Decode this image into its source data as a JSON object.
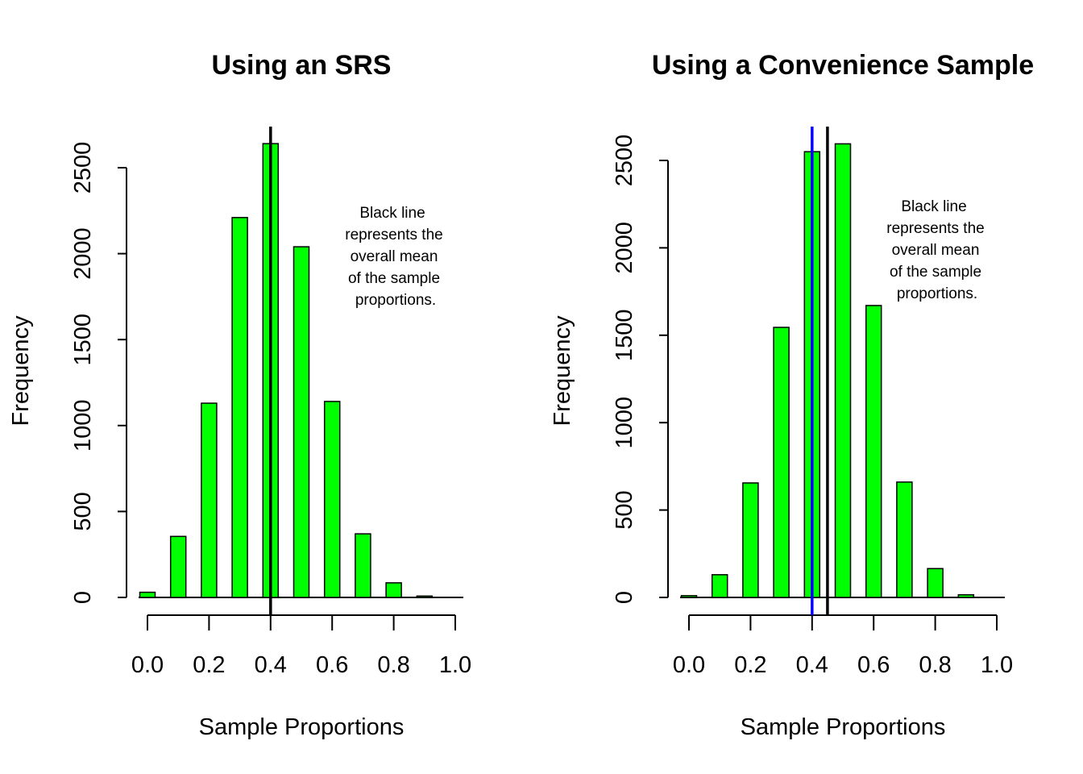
{
  "colors": {
    "bar_fill": "#00ff00",
    "bar_stroke": "#000000",
    "mean_line": "#000000",
    "true_line": "#0000ff",
    "background": "#ffffff"
  },
  "chart_data": [
    {
      "type": "bar",
      "title": "Using an SRS",
      "xlabel": "Sample Proportions",
      "ylabel": "Frequency",
      "x": [
        0.0,
        0.1,
        0.2,
        0.3,
        0.4,
        0.5,
        0.6,
        0.7,
        0.8,
        0.9
      ],
      "values": [
        30,
        355,
        1130,
        2210,
        2640,
        2040,
        1140,
        370,
        85,
        8
      ],
      "xlim": [
        0.0,
        1.0
      ],
      "ylim": [
        0,
        2500
      ],
      "xticks": [
        "0.0",
        "0.2",
        "0.4",
        "0.6",
        "0.8",
        "1.0"
      ],
      "yticks": [
        "0",
        "500",
        "1000",
        "1500",
        "2000",
        "2500"
      ],
      "vlines": [
        {
          "x": 0.4,
          "color": "#000000"
        }
      ],
      "annotation": [
        "Black line",
        "represents the",
        "overall mean",
        "of the sample",
        "proportions."
      ],
      "grid": false
    },
    {
      "type": "bar",
      "title": "Using a Convenience Sample",
      "xlabel": "Sample Proportions",
      "ylabel": "Frequency",
      "x": [
        0.0,
        0.1,
        0.2,
        0.3,
        0.4,
        0.5,
        0.6,
        0.7,
        0.8,
        0.9
      ],
      "values": [
        10,
        130,
        655,
        1545,
        2550,
        2595,
        1670,
        660,
        165,
        15
      ],
      "xlim": [
        0.0,
        1.0
      ],
      "ylim": [
        0,
        2500
      ],
      "xticks": [
        "0.0",
        "0.2",
        "0.4",
        "0.6",
        "0.8",
        "1.0"
      ],
      "yticks": [
        "0",
        "500",
        "1000",
        "1500",
        "2000",
        "2500"
      ],
      "vlines": [
        {
          "x": 0.4,
          "color": "#0000ff"
        },
        {
          "x": 0.45,
          "color": "#000000"
        }
      ],
      "annotation": [
        "Black line",
        "represents the",
        "overall mean",
        "of the sample",
        "proportions."
      ],
      "grid": false
    }
  ]
}
